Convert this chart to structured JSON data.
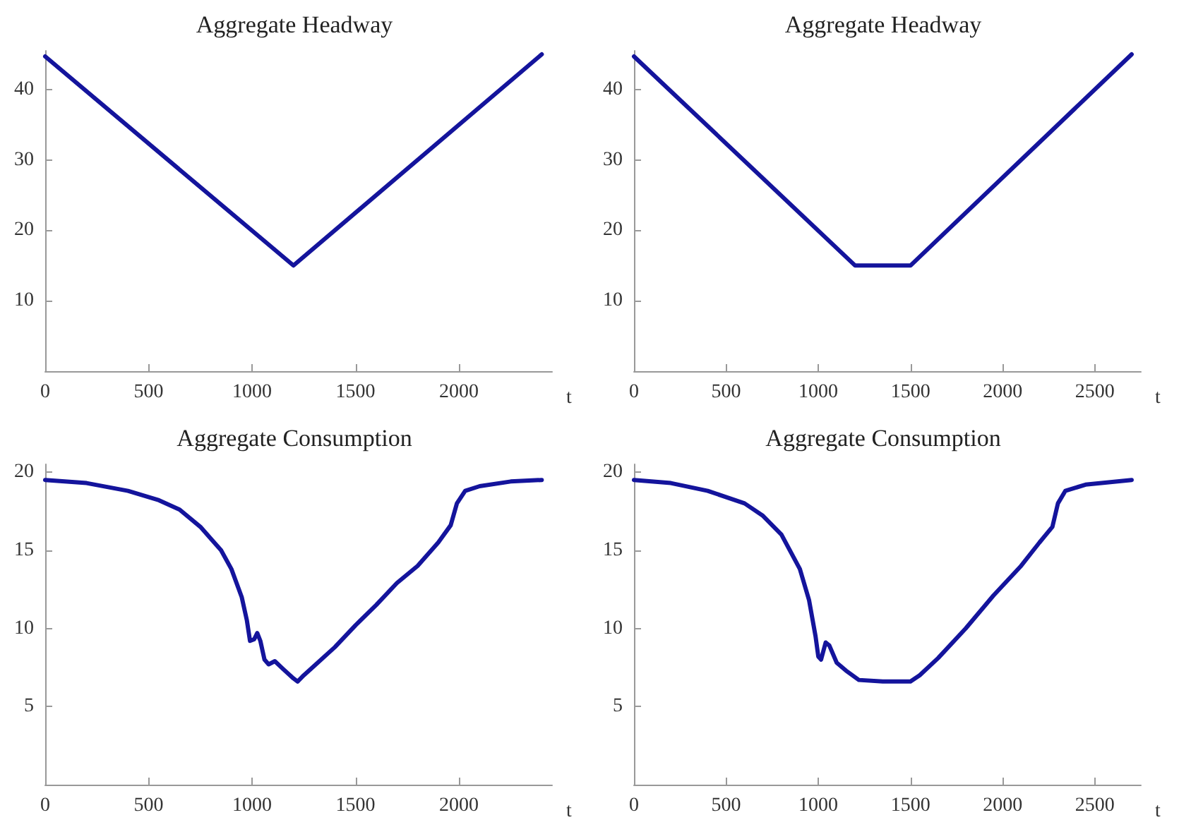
{
  "chart_data": [
    {
      "type": "line",
      "title": "Aggregate Headway",
      "xlabel": "t",
      "xlim": [
        0,
        2450
      ],
      "xticks": [
        0,
        500,
        1000,
        1500,
        2000
      ],
      "ylim": [
        0,
        45.5
      ],
      "yticks": [
        10,
        20,
        30,
        40
      ],
      "grid": false,
      "marker": "none",
      "series": [
        {
          "color": "#14149c",
          "x": [
            0,
            1200,
            2400
          ],
          "values": [
            44.7,
            15,
            45
          ]
        }
      ]
    },
    {
      "type": "line",
      "title": "Aggregate Headway",
      "xlabel": "t",
      "xlim": [
        0,
        2750
      ],
      "xticks": [
        0,
        500,
        1000,
        1500,
        2000,
        2500
      ],
      "ylim": [
        0,
        45.5
      ],
      "yticks": [
        10,
        20,
        30,
        40
      ],
      "grid": false,
      "marker": "none",
      "series": [
        {
          "color": "#14149c",
          "x": [
            0,
            1200,
            1500,
            2700
          ],
          "values": [
            44.7,
            15,
            15,
            45
          ]
        }
      ]
    },
    {
      "type": "line",
      "title": "Aggregate Consumption",
      "xlabel": "t",
      "xlim": [
        0,
        2450
      ],
      "xticks": [
        0,
        500,
        1000,
        1500,
        2000
      ],
      "ylim": [
        0,
        20.5
      ],
      "yticks": [
        5,
        10,
        15,
        20
      ],
      "grid": false,
      "marker": "none",
      "series": [
        {
          "color": "#14149c",
          "x": [
            0,
            200,
            400,
            550,
            650,
            750,
            850,
            900,
            950,
            975,
            990,
            1010,
            1025,
            1040,
            1060,
            1080,
            1110,
            1150,
            1200,
            1220,
            1250,
            1300,
            1400,
            1500,
            1600,
            1700,
            1800,
            1900,
            1960,
            1990,
            2030,
            2100,
            2250,
            2400
          ],
          "values": [
            19.5,
            19.3,
            18.8,
            18.2,
            17.6,
            16.5,
            15,
            13.8,
            12,
            10.5,
            9.2,
            9.3,
            9.7,
            9.2,
            8,
            7.7,
            7.9,
            7.4,
            6.8,
            6.6,
            7,
            7.6,
            8.8,
            10.2,
            11.5,
            12.9,
            14,
            15.5,
            16.6,
            18,
            18.8,
            19.1,
            19.4,
            19.5
          ]
        }
      ]
    },
    {
      "type": "line",
      "title": "Aggregate Consumption",
      "xlabel": "t",
      "xlim": [
        0,
        2750
      ],
      "xticks": [
        0,
        500,
        1000,
        1500,
        2000,
        2500
      ],
      "ylim": [
        0,
        20.5
      ],
      "yticks": [
        5,
        10,
        15,
        20
      ],
      "grid": false,
      "marker": "none",
      "series": [
        {
          "color": "#14149c",
          "x": [
            0,
            200,
            400,
            600,
            700,
            800,
            900,
            950,
            985,
            1000,
            1015,
            1040,
            1060,
            1100,
            1150,
            1220,
            1350,
            1500,
            1550,
            1650,
            1800,
            1950,
            2100,
            2200,
            2270,
            2300,
            2340,
            2450,
            2700
          ],
          "values": [
            19.5,
            19.3,
            18.8,
            18,
            17.2,
            16,
            13.8,
            11.8,
            9.5,
            8.2,
            8,
            9.1,
            8.9,
            7.8,
            7.3,
            6.7,
            6.6,
            6.6,
            7,
            8.1,
            10,
            12.1,
            14,
            15.5,
            16.5,
            18,
            18.8,
            19.2,
            19.5
          ]
        }
      ]
    }
  ]
}
